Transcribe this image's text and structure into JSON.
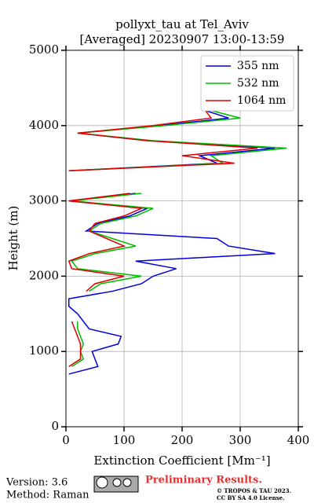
{
  "chart_data": {
    "type": "line",
    "title": "pollyxt_tau at Tel_Aviv",
    "subtitle": "[Averaged] 20230907 13:00-13:59",
    "x_label": "Extinction Coefficient [Mm⁻¹]",
    "y_label": "Height (m)",
    "xlim": [
      0,
      400
    ],
    "xticks": [
      0,
      100,
      200,
      300,
      400
    ],
    "ylim": [
      0,
      5000
    ],
    "yticks": [
      0,
      1000,
      2000,
      3000,
      4000,
      5000
    ],
    "grid": true,
    "legend": "upper right",
    "heights": [
      700,
      800,
      900,
      1000,
      1100,
      1200,
      1300,
      1400,
      1500,
      1600,
      1700,
      1800,
      1900,
      2000,
      2100,
      2200,
      2300,
      2400,
      2500,
      2600,
      2700,
      2800,
      2900,
      3000,
      3100,
      3200,
      3300,
      3400,
      3500,
      3600,
      3700,
      3800,
      3900,
      4000,
      4100,
      4200
    ],
    "series": [
      {
        "name": "355 nm",
        "color": "#0000dd",
        "values": [
          5,
          55,
          50,
          45,
          90,
          95,
          40,
          30,
          20,
          5,
          5,
          80,
          130,
          150,
          190,
          120,
          360,
          280,
          260,
          35,
          55,
          110,
          140,
          5,
          120,
          null,
          null,
          5,
          260,
          230,
          360,
          140,
          20,
          160,
          280,
          240
        ]
      },
      {
        "name": "532 nm",
        "color": "#00bb00",
        "values": [
          null,
          10,
          30,
          25,
          30,
          25,
          20,
          20,
          null,
          null,
          null,
          40,
          60,
          130,
          20,
          10,
          50,
          120,
          80,
          40,
          60,
          120,
          150,
          10,
          130,
          null,
          null,
          5,
          270,
          250,
          380,
          150,
          20,
          170,
          300,
          250
        ]
      },
      {
        "name": "1064 nm",
        "color": "#dd0000",
        "values": [
          null,
          5,
          25,
          25,
          25,
          20,
          15,
          10,
          null,
          null,
          null,
          35,
          50,
          100,
          10,
          5,
          40,
          100,
          70,
          40,
          50,
          100,
          130,
          5,
          110,
          null,
          null,
          5,
          290,
          200,
          330,
          140,
          20,
          150,
          250,
          240
        ]
      }
    ]
  },
  "footer": {
    "version": "Version: 3.6",
    "method": "Method: Raman",
    "status": "Preliminary Results.",
    "copyright": "© TROPOS & TAU 2023.",
    "license": "CC BY SA 4.0 License."
  }
}
